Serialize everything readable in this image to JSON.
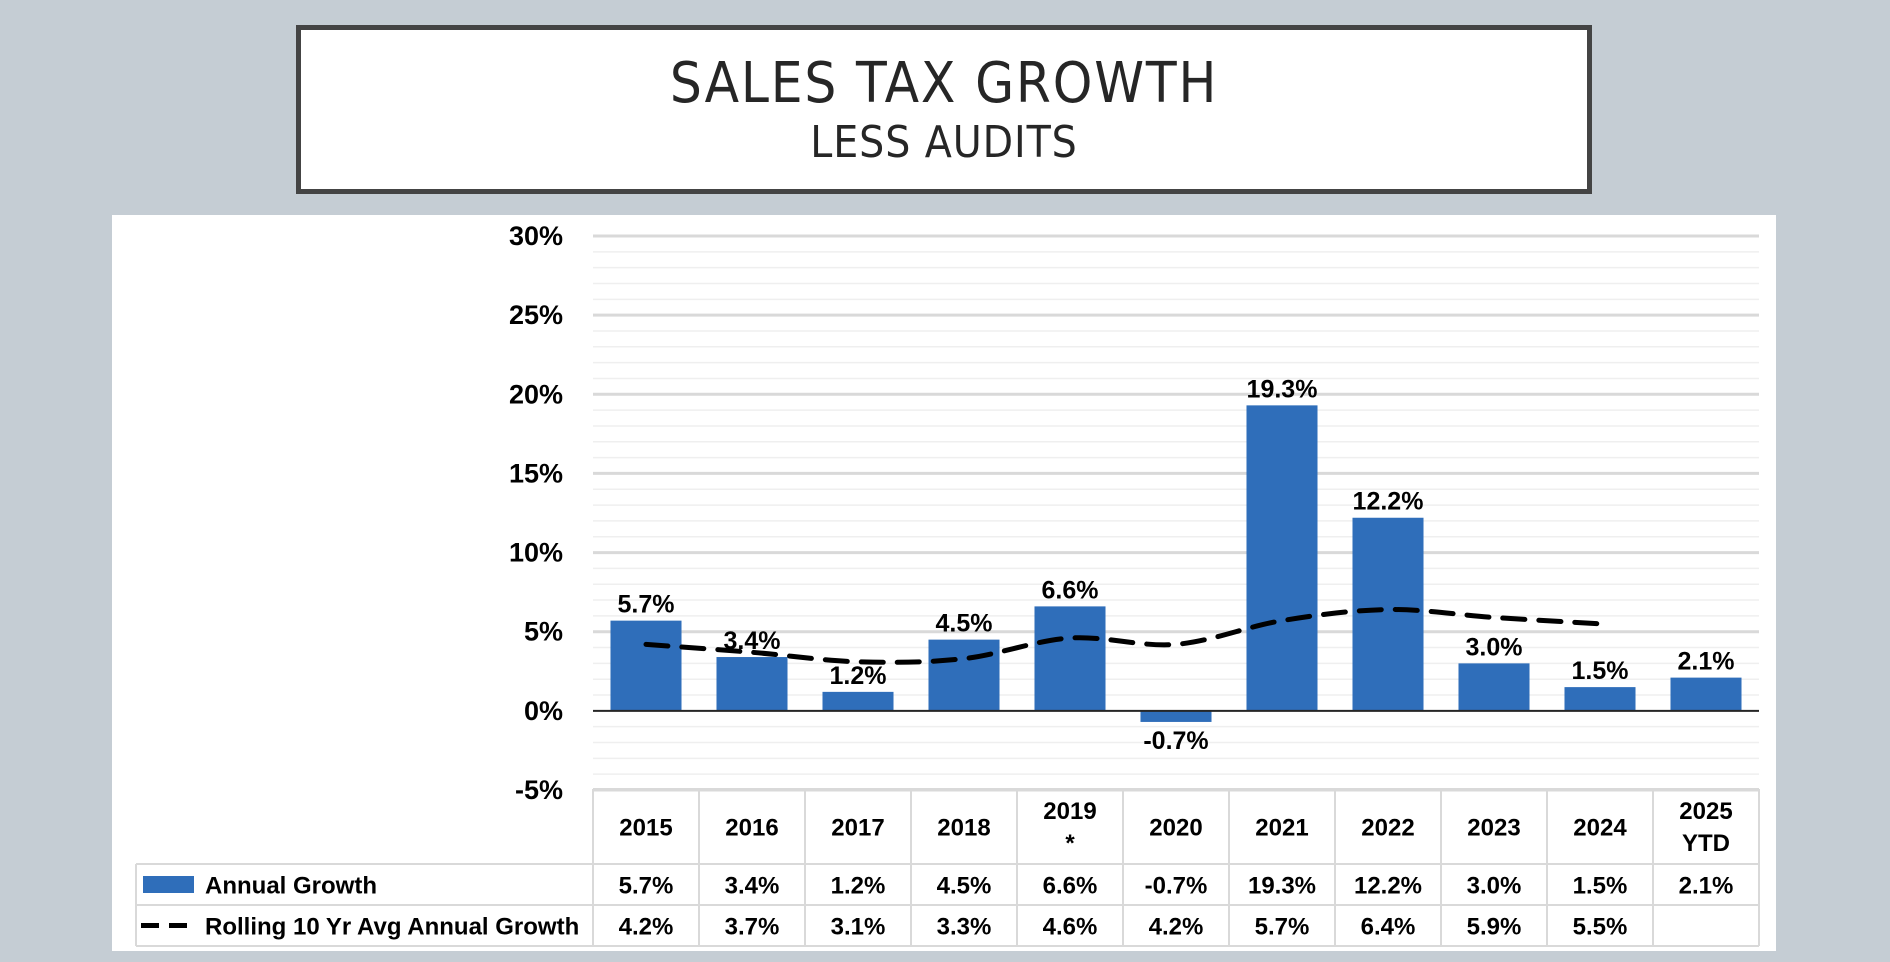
{
  "title": {
    "main": "SALES TAX GROWTH",
    "sub": "LESS AUDITS"
  },
  "colors": {
    "background": "#C5CDD4",
    "bar": "#2F6EBA",
    "line": "#000000",
    "grid_major": "#D9D9D9",
    "grid_minor": "#EFEFEF",
    "title_border": "#444444"
  },
  "chart_data": {
    "type": "bar",
    "title": "SALES TAX GROWTH",
    "subtitle": "LESS AUDITS",
    "xlabel": "",
    "ylabel": "",
    "categories": [
      "2015",
      "2016",
      "2017",
      "2018",
      "2019 *",
      "2020",
      "2021",
      "2022",
      "2023",
      "2024",
      "2025 YTD"
    ],
    "category_lines": [
      [
        "2015"
      ],
      [
        "2016"
      ],
      [
        "2017"
      ],
      [
        "2018"
      ],
      [
        "2019",
        "*"
      ],
      [
        "2020"
      ],
      [
        "2021"
      ],
      [
        "2022"
      ],
      [
        "2023"
      ],
      [
        "2024"
      ],
      [
        "2025",
        "YTD"
      ]
    ],
    "ylim": [
      -5,
      30
    ],
    "yticks": [
      30,
      25,
      20,
      15,
      10,
      5,
      0,
      -5
    ],
    "ytick_labels": [
      "30%",
      "25%",
      "20%",
      "15%",
      "10%",
      "5%",
      "0%",
      "-5%"
    ],
    "minor_tick_step": 1,
    "grid": true,
    "legend_placement": "bottom-left (data table)",
    "series": [
      {
        "name": "Annual Growth",
        "type": "bar",
        "values": [
          5.7,
          3.4,
          1.2,
          4.5,
          6.6,
          -0.7,
          19.3,
          12.2,
          3.0,
          1.5,
          2.1
        ],
        "labels": [
          "5.7%",
          "3.4%",
          "1.2%",
          "4.5%",
          "6.6%",
          "-0.7%",
          "19.3%",
          "12.2%",
          "3.0%",
          "1.5%",
          "2.1%"
        ]
      },
      {
        "name": "Rolling 10 Yr Avg Annual Growth",
        "type": "line",
        "style": "dashed",
        "values": [
          4.2,
          3.7,
          3.1,
          3.3,
          4.6,
          4.2,
          5.7,
          6.4,
          5.9,
          5.5,
          null
        ],
        "labels": [
          "4.2%",
          "3.7%",
          "3.1%",
          "3.3%",
          "4.6%",
          "4.2%",
          "5.7%",
          "6.4%",
          "5.9%",
          "5.5%",
          ""
        ]
      }
    ]
  }
}
